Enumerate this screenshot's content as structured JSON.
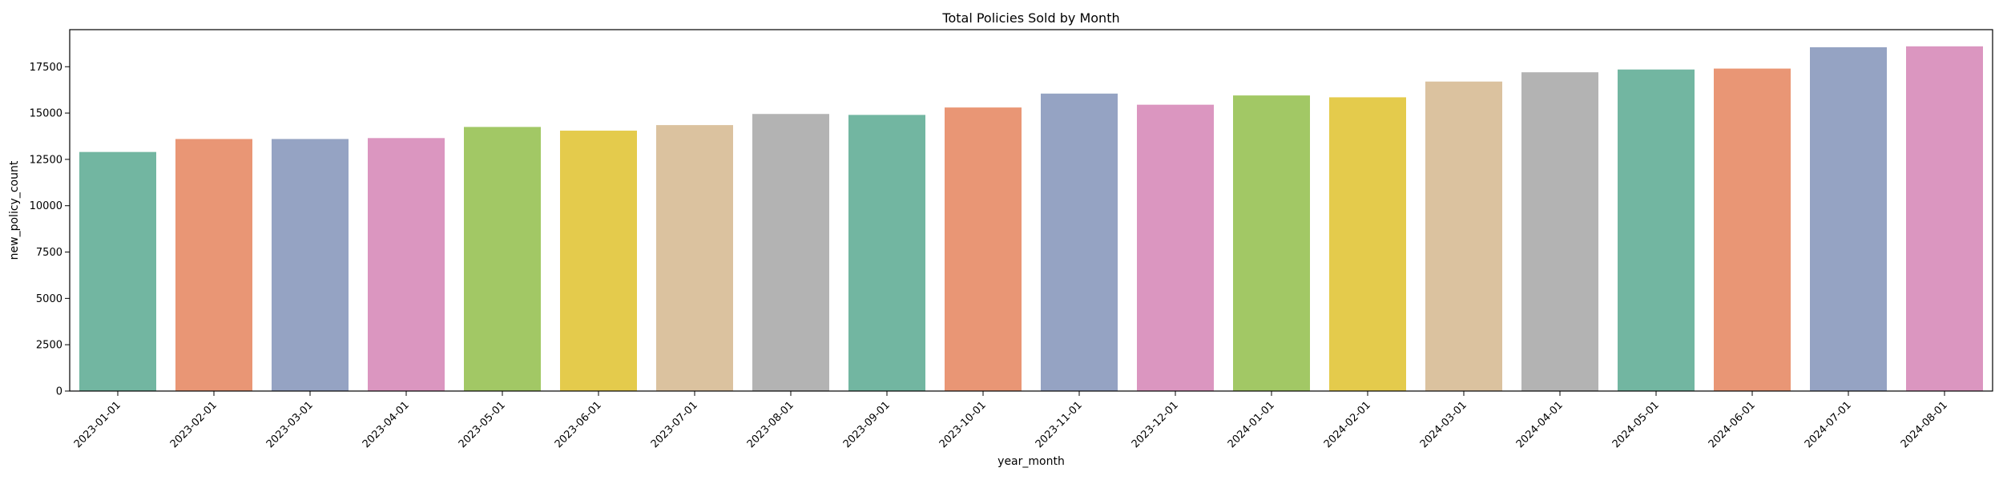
{
  "chart_data": {
    "type": "bar",
    "title": "Total Policies Sold by Month",
    "xlabel": "year_month",
    "ylabel": "new_policy_count",
    "categories": [
      "2023-01-01",
      "2023-02-01",
      "2023-03-01",
      "2023-04-01",
      "2023-05-01",
      "2023-06-01",
      "2023-07-01",
      "2023-08-01",
      "2023-09-01",
      "2023-10-01",
      "2023-11-01",
      "2023-12-01",
      "2024-01-01",
      "2024-02-01",
      "2024-03-01",
      "2024-04-01",
      "2024-05-01",
      "2024-06-01",
      "2024-07-01",
      "2024-08-01"
    ],
    "values": [
      12900,
      13600,
      13600,
      13650,
      14250,
      14050,
      14350,
      14950,
      14900,
      15300,
      16050,
      15450,
      15950,
      15850,
      16700,
      17200,
      17350,
      17400,
      18550,
      18600
    ],
    "ylim": [
      0,
      19500
    ],
    "yticks": [
      0,
      2500,
      5000,
      7500,
      10000,
      12500,
      15000,
      17500
    ],
    "grid": false,
    "palette": [
      "#72b6a1",
      "#e99675",
      "#95a3c3",
      "#db96c0",
      "#a2c865",
      "#e4cb4c",
      "#dbc29f",
      "#b3b3b3"
    ]
  }
}
